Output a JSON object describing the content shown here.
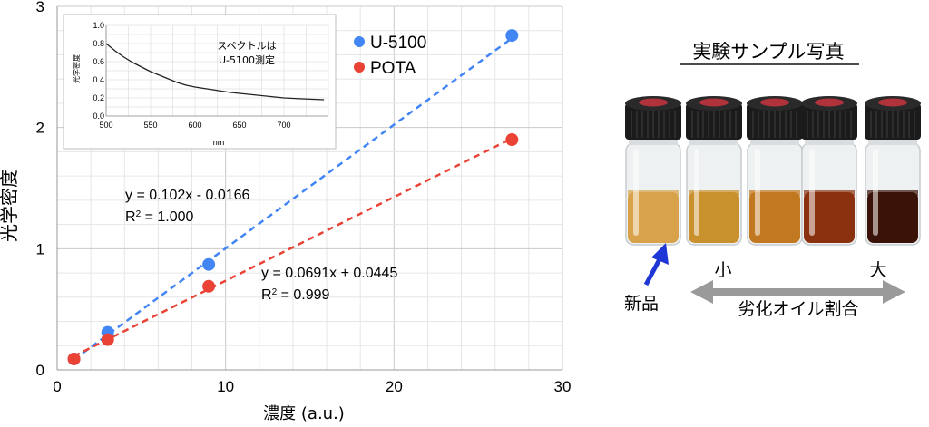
{
  "chart_data": [
    {
      "type": "scatter",
      "xlabel": "濃度 (a.u.)",
      "ylabel": "光学密度",
      "xlim": [
        0,
        30
      ],
      "ylim": [
        0,
        3
      ],
      "xticks": [
        "0",
        "10",
        "20",
        "30"
      ],
      "yticks": [
        "0",
        "1",
        "2",
        "3"
      ],
      "grid": true,
      "legend_position": "top-right",
      "series": [
        {
          "name": "U-5100",
          "color": "#4285f4",
          "x": [
            1,
            3,
            9,
            27
          ],
          "y": [
            0.09,
            0.31,
            0.87,
            2.76
          ],
          "fit": {
            "slope": 0.102,
            "intercept": -0.0166,
            "equation": "y = 0.102x - 0.0166",
            "r2_label": "R",
            "r2_sup": "2",
            "r2_value": " = 1.000"
          }
        },
        {
          "name": "POTA",
          "color": "#ea4335",
          "x": [
            1,
            3,
            9,
            27
          ],
          "y": [
            0.09,
            0.25,
            0.69,
            1.9
          ],
          "fit": {
            "slope": 0.0691,
            "intercept": 0.0445,
            "equation": "y = 0.0691x + 0.0445",
            "r2_label": "R",
            "r2_sup": "2",
            "r2_value": " = 0.999"
          }
        }
      ]
    },
    {
      "type": "line",
      "xlabel": "nm",
      "ylabel": "光学密度",
      "xlim": [
        500,
        750
      ],
      "ylim": [
        0,
        1.0
      ],
      "xticks": [
        "500",
        "550",
        "600",
        "650",
        "700"
      ],
      "yticks": [
        "0.0",
        "0.2",
        "0.4",
        "0.6",
        "0.8",
        "1.0"
      ],
      "grid": true,
      "annotation": [
        "スペクトルは",
        "U-5100測定"
      ],
      "series": [
        {
          "color": "#222222",
          "x": [
            500,
            510,
            520,
            530,
            540,
            550,
            560,
            570,
            580,
            590,
            600,
            620,
            640,
            660,
            680,
            700,
            720,
            745
          ],
          "y": [
            0.8,
            0.72,
            0.65,
            0.59,
            0.54,
            0.49,
            0.45,
            0.41,
            0.37,
            0.34,
            0.32,
            0.29,
            0.26,
            0.24,
            0.22,
            0.2,
            0.19,
            0.18
          ]
        }
      ]
    }
  ],
  "photo": {
    "title": "実験サンプル写真",
    "small_label": "小",
    "large_label": "大",
    "new_label": "新品",
    "ratio_label": "劣化オイル割合",
    "vials": [
      {
        "cap": "#1b1b1b",
        "liquid": "#d7a24a"
      },
      {
        "cap": "#1b1b1b",
        "liquid": "#c9902e"
      },
      {
        "cap": "#1b1b1b",
        "liquid": "#c27820"
      },
      {
        "cap": "#1b1b1b",
        "liquid": "#8a3210"
      },
      {
        "cap": "#1b1b1b",
        "liquid": "#3a1208"
      }
    ],
    "arrow_color": "#1f36d6",
    "double_arrow_color": "#9a9a9a"
  }
}
